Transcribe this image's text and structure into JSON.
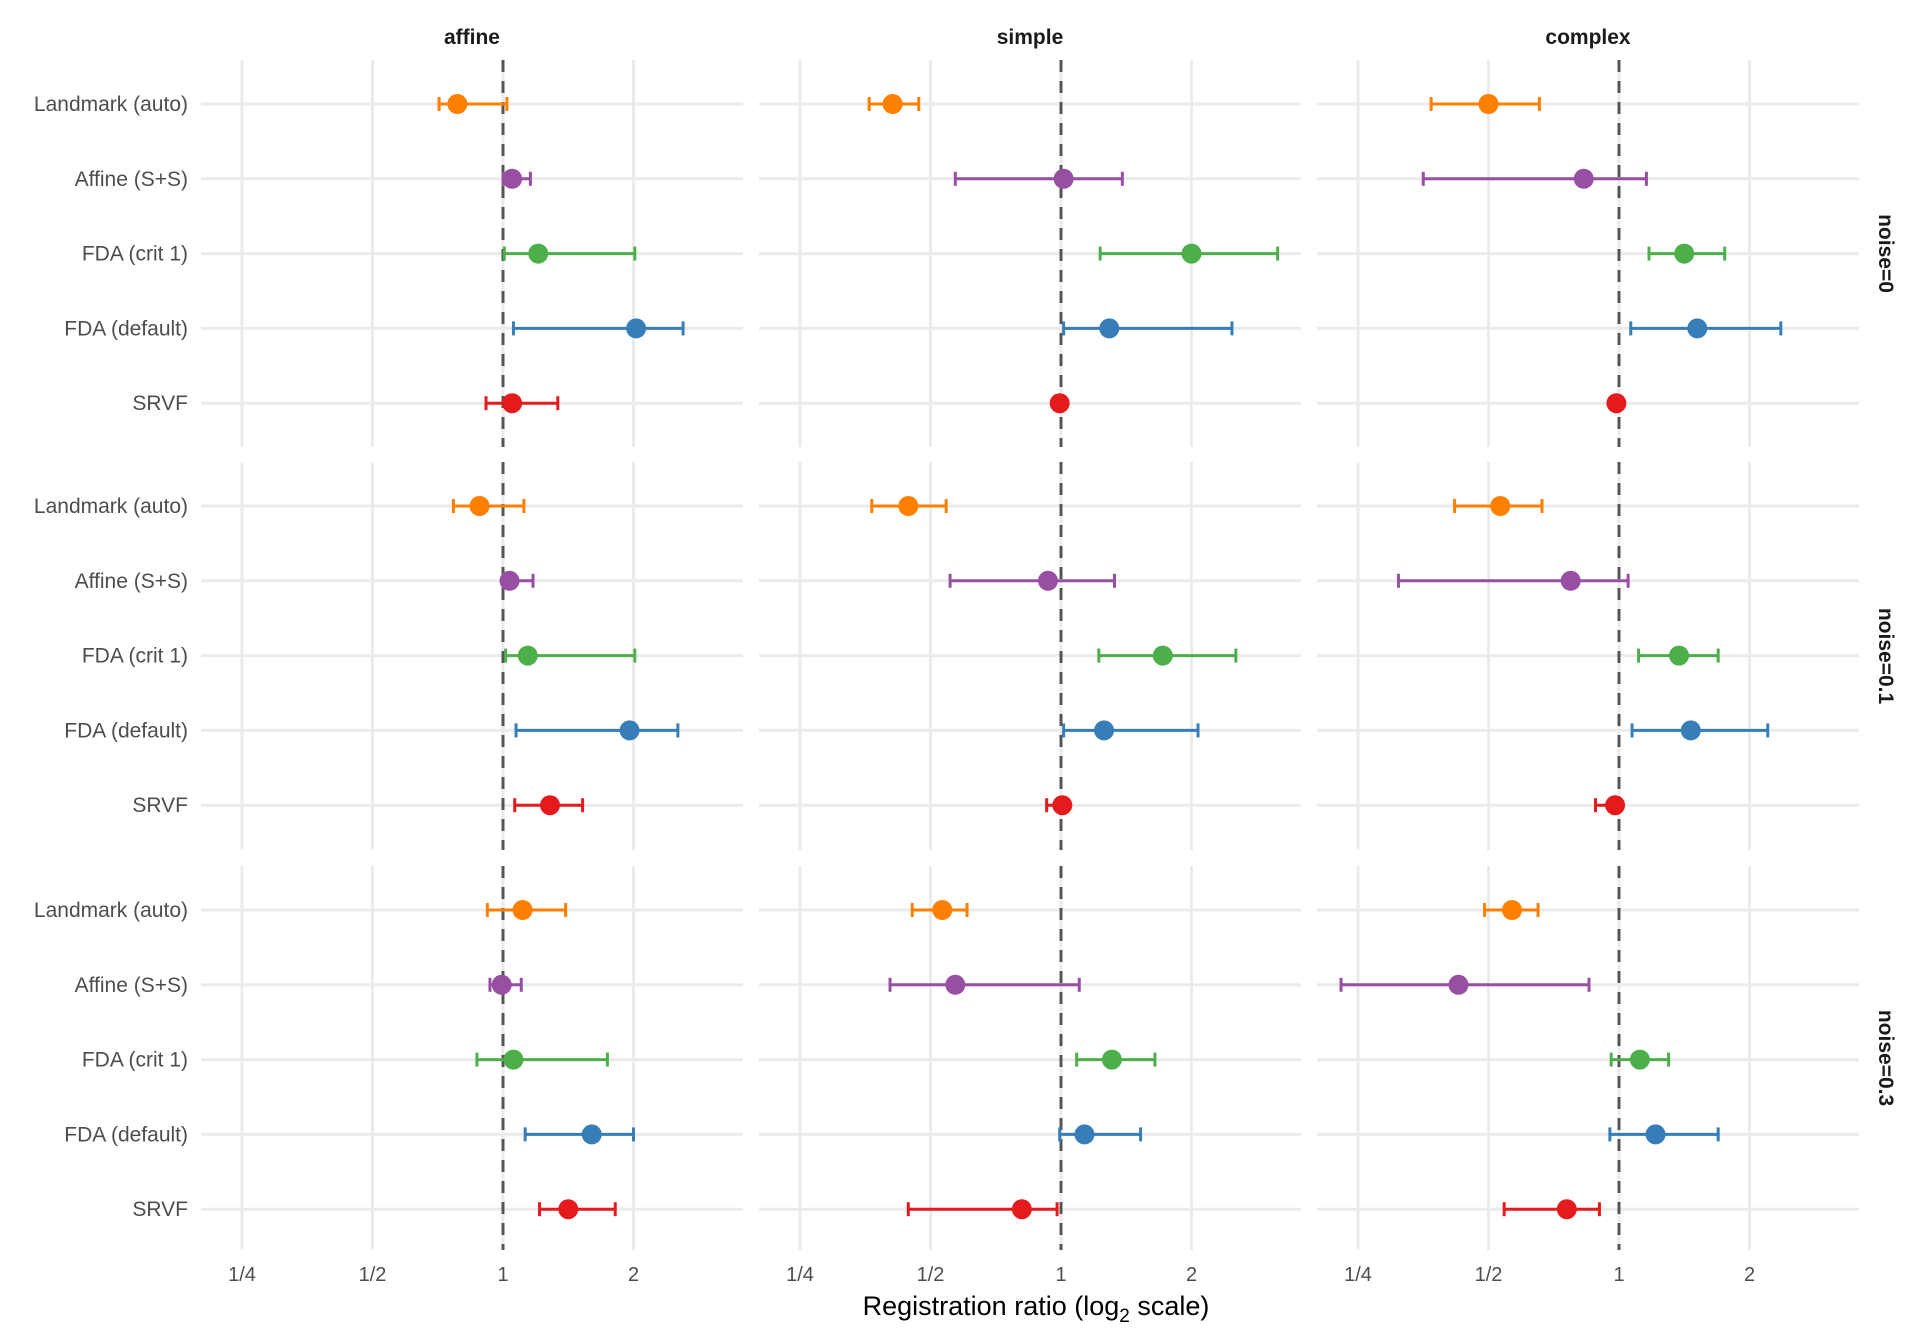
{
  "chart_data": {
    "type": "scatter",
    "subtype": "faceted point-range (dot with horizontal interval)",
    "xlabel_main": "Registration ratio (log",
    "xlabel_sub": "2",
    "xlabel_end": " scale)",
    "x_scale": "log2",
    "x_ticks": [
      {
        "value": 0.25,
        "label": "1/4"
      },
      {
        "value": 0.5,
        "label": "1/2"
      },
      {
        "value": 1,
        "label": "1"
      },
      {
        "value": 2,
        "label": "2"
      }
    ],
    "xlim_log2": [
      -2.32,
      1.83
    ],
    "reference_line": {
      "value": 1,
      "style": "dashed"
    },
    "grid": true,
    "columns": [
      "affine",
      "simple",
      "complex"
    ],
    "rows": [
      "noise=0",
      "noise=0.1",
      "noise=0.3"
    ],
    "methods": [
      "Landmark (auto)",
      "Affine (S+S)",
      "FDA (crit 1)",
      "FDA (default)",
      "SRVF"
    ],
    "colors": {
      "Landmark (auto)": "#FF7F00",
      "Affine (S+S)": "#984EA3",
      "FDA (crit 1)": "#4DAF4A",
      "FDA (default)": "#377EB8",
      "SRVF": "#E41A1C"
    },
    "value_units": "log2 of ratio; each entry is [lower, point, upper]",
    "panels": {
      "noise=0": {
        "affine": {
          "Landmark (auto)": [
            -0.49,
            -0.35,
            0.03
          ],
          "Affine (S+S)": [
            0.0,
            0.07,
            0.21
          ],
          "FDA (crit 1)": [
            0.01,
            0.27,
            1.01
          ],
          "FDA (default)": [
            0.08,
            1.02,
            1.38
          ],
          "SRVF": [
            -0.13,
            0.07,
            0.42
          ]
        },
        "simple": {
          "Landmark (auto)": [
            -1.47,
            -1.29,
            -1.09
          ],
          "Affine (S+S)": [
            -0.81,
            0.02,
            0.47
          ],
          "FDA (crit 1)": [
            0.3,
            1.0,
            1.66
          ],
          "FDA (default)": [
            0.02,
            0.37,
            1.31
          ],
          "SRVF": [
            -0.01,
            -0.01,
            -0.01
          ]
        },
        "complex": {
          "Landmark (auto)": [
            -1.44,
            -1.0,
            -0.61
          ],
          "Affine (S+S)": [
            -1.5,
            -0.27,
            0.21
          ],
          "FDA (crit 1)": [
            0.23,
            0.5,
            0.81
          ],
          "FDA (default)": [
            0.09,
            0.6,
            1.24
          ],
          "SRVF": [
            -0.02,
            -0.02,
            -0.02
          ]
        }
      },
      "noise=0.1": {
        "affine": {
          "Landmark (auto)": [
            -0.38,
            -0.18,
            0.16
          ],
          "Affine (S+S)": [
            0.0,
            0.05,
            0.23
          ],
          "FDA (crit 1)": [
            0.02,
            0.19,
            1.01
          ],
          "FDA (default)": [
            0.1,
            0.97,
            1.34
          ],
          "SRVF": [
            0.09,
            0.36,
            0.61
          ]
        },
        "simple": {
          "Landmark (auto)": [
            -1.45,
            -1.17,
            -0.88
          ],
          "Affine (S+S)": [
            -0.85,
            -0.1,
            0.41
          ],
          "FDA (crit 1)": [
            0.29,
            0.78,
            1.34
          ],
          "FDA (default)": [
            0.02,
            0.33,
            1.05
          ],
          "SRVF": [
            -0.11,
            0.01,
            0.03
          ]
        },
        "complex": {
          "Landmark (auto)": [
            -1.26,
            -0.91,
            -0.59
          ],
          "Affine (S+S)": [
            -1.69,
            -0.37,
            0.07
          ],
          "FDA (crit 1)": [
            0.15,
            0.46,
            0.76
          ],
          "FDA (default)": [
            0.1,
            0.55,
            1.14
          ],
          "SRVF": [
            -0.18,
            -0.03,
            0.0
          ]
        }
      },
      "noise=0.3": {
        "affine": {
          "Landmark (auto)": [
            -0.12,
            0.15,
            0.48
          ],
          "Affine (S+S)": [
            -0.1,
            -0.01,
            0.14
          ],
          "FDA (crit 1)": [
            -0.2,
            0.08,
            0.8
          ],
          "FDA (default)": [
            0.17,
            0.68,
            1.0
          ],
          "SRVF": [
            0.28,
            0.5,
            0.86
          ]
        },
        "simple": {
          "Landmark (auto)": [
            -1.14,
            -0.91,
            -0.72
          ],
          "Affine (S+S)": [
            -1.31,
            -0.81,
            0.14
          ],
          "FDA (crit 1)": [
            0.12,
            0.39,
            0.72
          ],
          "FDA (default)": [
            -0.01,
            0.18,
            0.61
          ],
          "SRVF": [
            -1.17,
            -0.3,
            -0.03
          ]
        },
        "complex": {
          "Landmark (auto)": [
            -1.03,
            -0.82,
            -0.62
          ],
          "Affine (S+S)": [
            -2.13,
            -1.23,
            -0.23
          ],
          "FDA (crit 1)": [
            -0.06,
            0.16,
            0.38
          ],
          "FDA (default)": [
            -0.07,
            0.28,
            0.76
          ],
          "SRVF": [
            -0.88,
            -0.4,
            -0.15
          ]
        }
      }
    }
  }
}
